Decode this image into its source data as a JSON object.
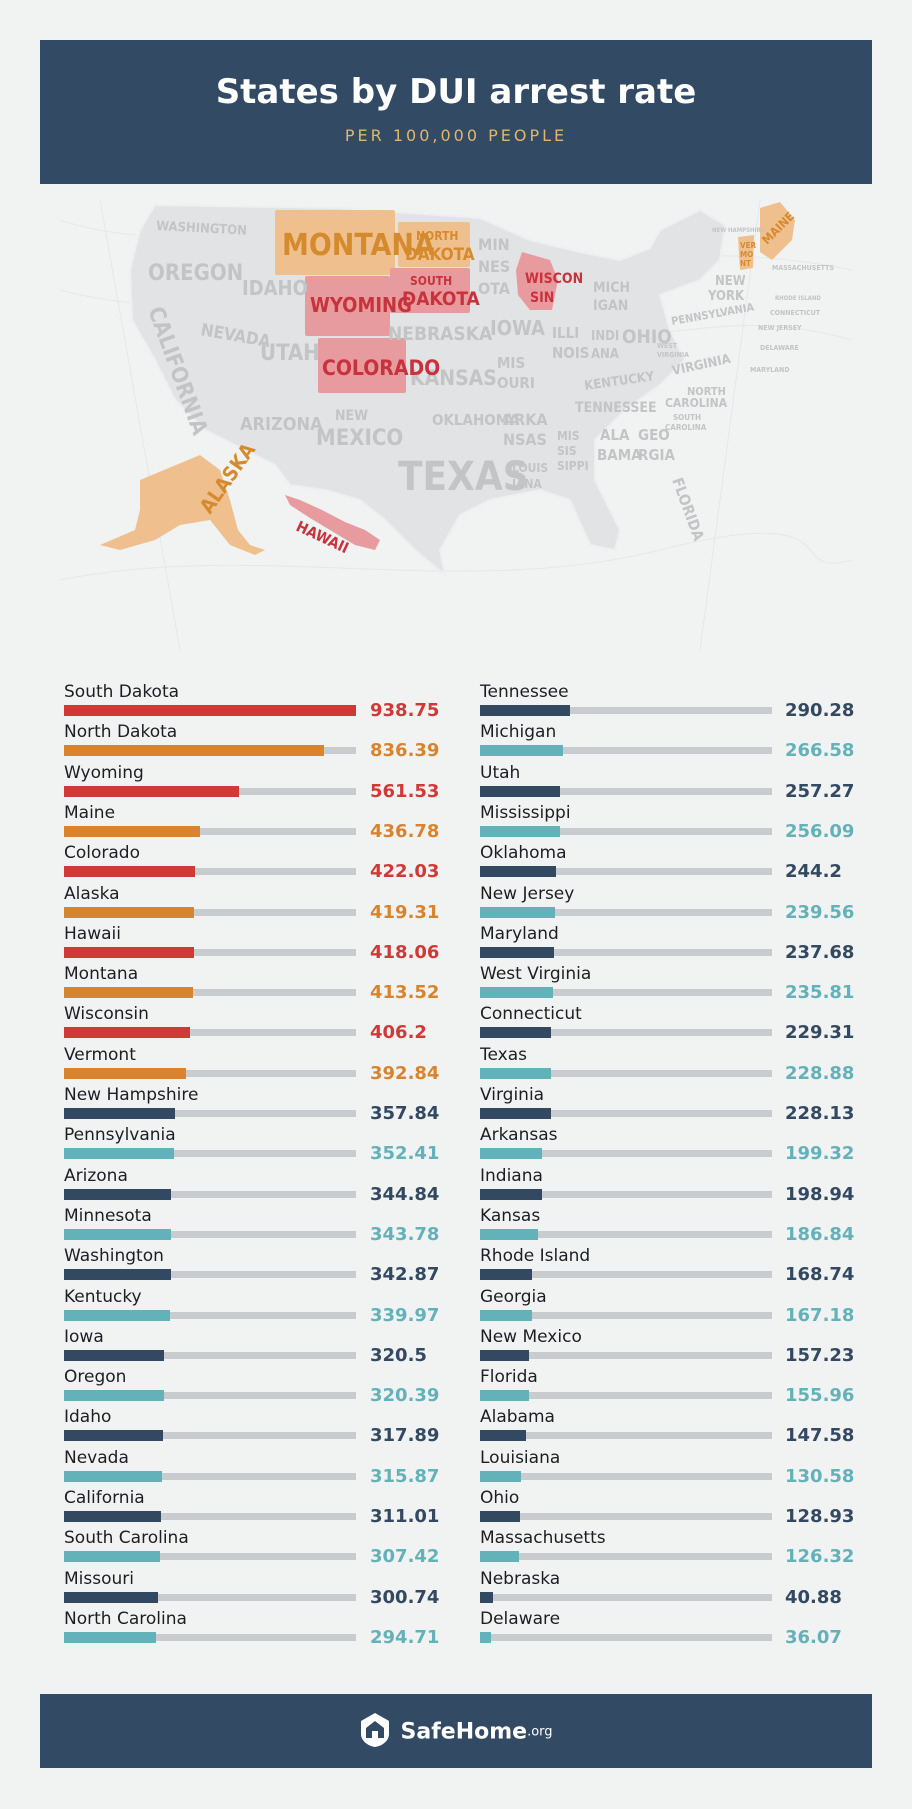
{
  "header": {
    "title": "States by DUI arrest rate",
    "subtitle": "PER 100,000 PEOPLE"
  },
  "map": {
    "labels": {
      "washington": "WASHINGTON",
      "oregon": "OREGON",
      "california": "CALIFORNIA",
      "idaho": "IDAHO",
      "nevada": "NEVADA",
      "montana": "MONTANA",
      "wyoming": "WYOMING",
      "utah": "UTAH",
      "colorado": "COLORADO",
      "arizona": "ARIZONA",
      "new_mexico_1": "NEW",
      "new_mexico_2": "MEXICO",
      "north_dakota_1": "NORTH",
      "north_dakota_2": "DAKOTA",
      "south_dakota_1": "SOUTH",
      "south_dakota_2": "DAKOTA",
      "nebraska": "NEBRASKA",
      "kansas": "KANSAS",
      "oklahoma": "OKLAHOMA",
      "texas": "TEXAS",
      "minnesota_1": "MIN",
      "minnesota_2": "NES",
      "minnesota_3": "OTA",
      "iowa": "IOWA",
      "missouri_1": "MIS",
      "missouri_2": "OURI",
      "arkansas_1": "ARKA",
      "arkansas_2": "NSAS",
      "louisiana_1": "LOUIS",
      "louisiana_2": "IANA",
      "wisconsin_1": "WISCON",
      "wisconsin_2": "SIN",
      "illinois_1": "ILLI",
      "illinois_2": "NOIS",
      "michigan_1": "MICH",
      "michigan_2": "IGAN",
      "indiana_1": "INDI",
      "indiana_2": "ANA",
      "ohio": "OHIO",
      "kentucky": "KENTUCKY",
      "tennessee": "TENNESSEE",
      "mississippi_1": "MIS",
      "mississippi_2": "SIS",
      "mississippi_3": "SIPPI",
      "alabama_1": "ALA",
      "alabama_2": "BAMA",
      "georgia_1": "GEO",
      "georgia_2": "RGIA",
      "florida": "FLORIDA",
      "pennsylvania": "PENNSYLVANIA",
      "new_york_1": "NEW",
      "new_york_2": "YORK",
      "virginia": "VIRGINIA",
      "west_virginia_1": "WEST",
      "west_virginia_2": "VIRGINIA",
      "north_carolina_1": "NORTH",
      "north_carolina_2": "CAROLINA",
      "south_carolina_1": "SOUTH",
      "south_carolina_2": "CAROLINA",
      "maine": "MAINE",
      "vermont_1": "VER",
      "vermont_2": "MO",
      "vermont_3": "NT",
      "new_hampshire": "NEW HAMPSHIRE",
      "massachusetts": "MASSACHUSETTS",
      "rhode_island": "RHODE ISLAND",
      "connecticut": "CONNECTICUT",
      "new_jersey": "NEW JERSEY",
      "delaware": "DELAWARE",
      "maryland": "MARYLAND",
      "alaska": "ALASKA",
      "hawaii": "HAWAII"
    },
    "colors": {
      "land": "#e2e3e4",
      "state_label": "#c2c4c6",
      "red_fill": "#e89b9e",
      "red_label": "#c8323c",
      "orange_fill": "#efc08e",
      "orange_label": "#d68a2e"
    }
  },
  "colors": {
    "red": "#cf3a36",
    "orange": "#d9842d",
    "navy": "#334961",
    "teal": "#63b1b9",
    "track": "#c9cccf"
  },
  "chart_data": {
    "type": "bar",
    "title": "States by DUI arrest rate",
    "subtitle": "PER 100,000 PEOPLE",
    "xlim": [
      0,
      938.75
    ],
    "columns": [
      [
        {
          "state": "South Dakota",
          "value": 938.75,
          "color": "red"
        },
        {
          "state": "North Dakota",
          "value": 836.39,
          "color": "orange"
        },
        {
          "state": "Wyoming",
          "value": 561.53,
          "color": "red"
        },
        {
          "state": "Maine",
          "value": 436.78,
          "color": "orange"
        },
        {
          "state": "Colorado",
          "value": 422.03,
          "color": "red"
        },
        {
          "state": "Alaska",
          "value": 419.31,
          "color": "orange"
        },
        {
          "state": "Hawaii",
          "value": 418.06,
          "color": "red"
        },
        {
          "state": "Montana",
          "value": 413.52,
          "color": "orange"
        },
        {
          "state": "Wisconsin",
          "value": 406.2,
          "color": "red"
        },
        {
          "state": "Vermont",
          "value": 392.84,
          "color": "orange"
        },
        {
          "state": "New Hampshire",
          "value": 357.84,
          "color": "navy"
        },
        {
          "state": "Pennsylvania",
          "value": 352.41,
          "color": "teal"
        },
        {
          "state": "Arizona",
          "value": 344.84,
          "color": "navy"
        },
        {
          "state": "Minnesota",
          "value": 343.78,
          "color": "teal"
        },
        {
          "state": "Washington",
          "value": 342.87,
          "color": "navy"
        },
        {
          "state": "Kentucky",
          "value": 339.97,
          "color": "teal"
        },
        {
          "state": "Iowa",
          "value": 320.5,
          "color": "navy"
        },
        {
          "state": "Oregon",
          "value": 320.39,
          "color": "teal"
        },
        {
          "state": "Idaho",
          "value": 317.89,
          "color": "navy"
        },
        {
          "state": "Nevada",
          "value": 315.87,
          "color": "teal"
        },
        {
          "state": "California",
          "value": 311.01,
          "color": "navy"
        },
        {
          "state": "South Carolina",
          "value": 307.42,
          "color": "teal"
        },
        {
          "state": "Missouri",
          "value": 300.74,
          "color": "navy"
        },
        {
          "state": "North Carolina",
          "value": 294.71,
          "color": "teal"
        }
      ],
      [
        {
          "state": "Tennessee",
          "value": 290.28,
          "color": "navy"
        },
        {
          "state": "Michigan",
          "value": 266.58,
          "color": "teal"
        },
        {
          "state": "Utah",
          "value": 257.27,
          "color": "navy"
        },
        {
          "state": "Mississippi",
          "value": 256.09,
          "color": "teal"
        },
        {
          "state": "Oklahoma",
          "value": 244.2,
          "color": "navy"
        },
        {
          "state": "New Jersey",
          "value": 239.56,
          "color": "teal"
        },
        {
          "state": "Maryland",
          "value": 237.68,
          "color": "navy"
        },
        {
          "state": "West Virginia",
          "value": 235.81,
          "color": "teal"
        },
        {
          "state": "Connecticut",
          "value": 229.31,
          "color": "navy"
        },
        {
          "state": "Texas",
          "value": 228.88,
          "color": "teal"
        },
        {
          "state": "Virginia",
          "value": 228.13,
          "color": "navy"
        },
        {
          "state": "Arkansas",
          "value": 199.32,
          "color": "teal"
        },
        {
          "state": "Indiana",
          "value": 198.94,
          "color": "navy"
        },
        {
          "state": "Kansas",
          "value": 186.84,
          "color": "teal"
        },
        {
          "state": "Rhode Island",
          "value": 168.74,
          "color": "navy"
        },
        {
          "state": "Georgia",
          "value": 167.18,
          "color": "teal"
        },
        {
          "state": "New Mexico",
          "value": 157.23,
          "color": "navy"
        },
        {
          "state": "Florida",
          "value": 155.96,
          "color": "teal"
        },
        {
          "state": "Alabama",
          "value": 147.58,
          "color": "navy"
        },
        {
          "state": "Louisiana",
          "value": 130.58,
          "color": "teal"
        },
        {
          "state": "Ohio",
          "value": 128.93,
          "color": "navy"
        },
        {
          "state": "Massachusetts",
          "value": 126.32,
          "color": "teal"
        },
        {
          "state": "Nebraska",
          "value": 40.88,
          "color": "navy"
        },
        {
          "state": "Delaware",
          "value": 36.07,
          "color": "teal"
        }
      ]
    ]
  },
  "footer": {
    "brand": "SafeHome",
    "tld": ".org",
    "logo_icon": "house-shield-icon"
  }
}
